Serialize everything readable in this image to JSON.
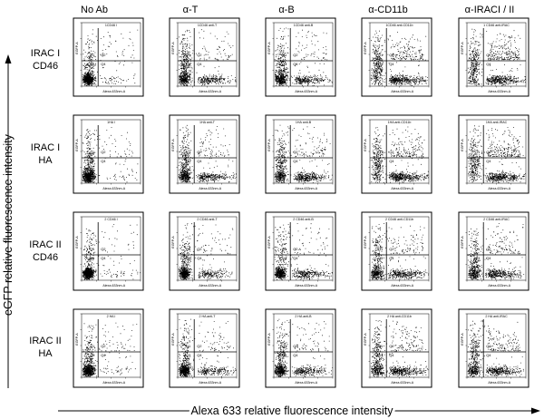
{
  "figure": {
    "x_axis_title": "Alexa 633 relative fluorescence intensity",
    "y_axis_title": "eGFP relative fluorescence intensity",
    "columns": [
      "No Ab",
      "α-T",
      "α-B",
      "α-CD11b",
      "α-IRACI / II"
    ],
    "rows": [
      {
        "line1": "IRAC I",
        "line2": "CD46"
      },
      {
        "line1": "IRAC I",
        "line2": "HA"
      },
      {
        "line1": "IRAC II",
        "line2": "CD46"
      },
      {
        "line1": "IRAC II",
        "line2": "HA"
      }
    ],
    "panel_x_label": "Alexa-633nm-A",
    "panel_y_label": "EGFP-A",
    "quadrant_labels": [
      "Q1",
      "Q2",
      "Q3",
      "Q4"
    ],
    "panel_titles": [
      [
        "1CD46 I",
        "1CD46 anti-T",
        "1CD46 anti-B",
        "1CD46 anti-CD11b",
        "1 CD46 anti-IRAC"
      ],
      [
        "1HA I",
        "1HA anti-T",
        "1HA anti-B",
        "1HA anti-CD11b",
        "1HA anti-IRAC"
      ],
      [
        "2 CD46 I",
        "2 CD46 anti-T",
        "2 CD46 anti-B",
        "2 CD46 anti-CD11b",
        "2 CD46 anti-IRAC"
      ],
      [
        "2 HA I",
        "2 HA anti-T",
        "2 HA anti-B",
        "2 HA anti-CD11b",
        "2 HA anti-IRAC"
      ]
    ]
  },
  "chart_data": {
    "type": "scatter",
    "description_scale": "log",
    "xlim": [
      0,
      1
    ],
    "ylim": [
      0,
      1
    ],
    "gate": {
      "x": 0.28,
      "y": 0.4
    },
    "panels": [
      [
        {
          "pos_up": 0.18,
          "pos_right": 0.03,
          "pos_dr": 0.02,
          "spread": 0.1
        },
        {
          "pos_up": 0.28,
          "pos_right": 0.3,
          "pos_dr": 0.05,
          "spread": 0.12
        },
        {
          "pos_up": 0.22,
          "pos_right": 0.32,
          "pos_dr": 0.04,
          "spread": 0.12
        },
        {
          "pos_up": 0.25,
          "pos_right": 0.45,
          "pos_dr": 0.18,
          "spread": 0.14
        },
        {
          "pos_up": 0.25,
          "pos_right": 0.42,
          "pos_dr": 0.22,
          "spread": 0.14
        }
      ],
      [
        {
          "pos_up": 0.22,
          "pos_right": 0.03,
          "pos_dr": 0.02,
          "spread": 0.12
        },
        {
          "pos_up": 0.26,
          "pos_right": 0.32,
          "pos_dr": 0.06,
          "spread": 0.12
        },
        {
          "pos_up": 0.22,
          "pos_right": 0.4,
          "pos_dr": 0.08,
          "spread": 0.12
        },
        {
          "pos_up": 0.24,
          "pos_right": 0.48,
          "pos_dr": 0.16,
          "spread": 0.14
        },
        {
          "pos_up": 0.26,
          "pos_right": 0.45,
          "pos_dr": 0.2,
          "spread": 0.14
        }
      ],
      [
        {
          "pos_up": 0.14,
          "pos_right": 0.03,
          "pos_dr": 0.01,
          "spread": 0.1
        },
        {
          "pos_up": 0.18,
          "pos_right": 0.22,
          "pos_dr": 0.03,
          "spread": 0.1
        },
        {
          "pos_up": 0.16,
          "pos_right": 0.3,
          "pos_dr": 0.03,
          "spread": 0.1
        },
        {
          "pos_up": 0.18,
          "pos_right": 0.38,
          "pos_dr": 0.08,
          "spread": 0.12
        },
        {
          "pos_up": 0.18,
          "pos_right": 0.36,
          "pos_dr": 0.1,
          "spread": 0.12
        }
      ],
      [
        {
          "pos_up": 0.2,
          "pos_right": 0.03,
          "pos_dr": 0.02,
          "spread": 0.11
        },
        {
          "pos_up": 0.22,
          "pos_right": 0.25,
          "pos_dr": 0.04,
          "spread": 0.11
        },
        {
          "pos_up": 0.2,
          "pos_right": 0.3,
          "pos_dr": 0.04,
          "spread": 0.11
        },
        {
          "pos_up": 0.22,
          "pos_right": 0.4,
          "pos_dr": 0.1,
          "spread": 0.13
        },
        {
          "pos_up": 0.22,
          "pos_right": 0.38,
          "pos_dr": 0.12,
          "spread": 0.13
        }
      ]
    ]
  }
}
